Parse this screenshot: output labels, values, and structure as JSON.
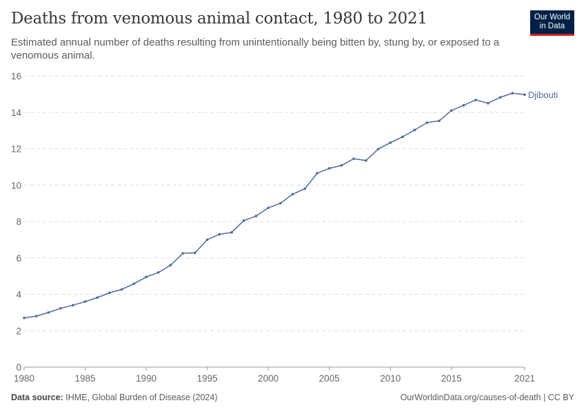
{
  "header": {
    "title": "Deaths from venomous animal contact, 1980 to 2021",
    "subtitle": "Estimated annual number of deaths resulting from unintentionally being bitten by, stung by, or exposed to a venomous animal.",
    "logo_line1": "Our World",
    "logo_line2": "in Data"
  },
  "footer": {
    "source_label": "Data source:",
    "source": "IHME, Global Burden of Disease (2024)",
    "url": "OurWorldinData.org/causes-of-death | CC BY"
  },
  "chart_data": {
    "type": "line",
    "title": "Deaths from venomous animal contact, 1980 to 2021",
    "xlim": [
      1980,
      2021
    ],
    "ylim": [
      0,
      16
    ],
    "xticks": [
      1980,
      1985,
      1990,
      1995,
      2000,
      2005,
      2010,
      2015,
      2021
    ],
    "yticks": [
      0,
      2,
      4,
      6,
      8,
      10,
      12,
      14,
      16
    ],
    "grid": "horizontal dashed",
    "color": "#4c6a9c",
    "series": [
      {
        "name": "Djibouti",
        "x": [
          1980,
          1981,
          1982,
          1983,
          1984,
          1985,
          1986,
          1987,
          1988,
          1989,
          1990,
          1991,
          1992,
          1993,
          1994,
          1995,
          1996,
          1997,
          1998,
          1999,
          2000,
          2001,
          2002,
          2003,
          2004,
          2005,
          2006,
          2007,
          2008,
          2009,
          2010,
          2011,
          2012,
          2013,
          2014,
          2015,
          2016,
          2017,
          2018,
          2019,
          2020,
          2021
        ],
        "values": [
          2.7,
          2.8,
          3.0,
          3.23,
          3.4,
          3.6,
          3.82,
          4.08,
          4.27,
          4.58,
          4.95,
          5.2,
          5.6,
          6.25,
          6.28,
          7.0,
          7.3,
          7.4,
          8.05,
          8.3,
          8.75,
          9.0,
          9.5,
          9.8,
          10.65,
          10.92,
          11.08,
          11.45,
          11.35,
          11.98,
          12.33,
          12.65,
          13.03,
          13.43,
          13.53,
          14.1,
          14.38,
          14.68,
          14.5,
          14.82,
          15.05,
          14.97
        ]
      }
    ]
  }
}
